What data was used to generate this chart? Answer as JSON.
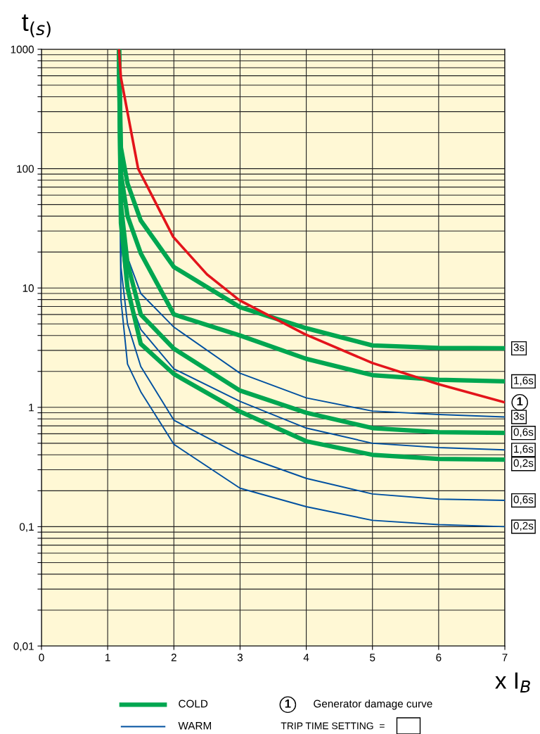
{
  "chart_data": {
    "type": "line",
    "xlabel": "x I$_{B}$",
    "ylabel": "t$_{(s)}$",
    "log": "y",
    "xlim": [
      0,
      7
    ],
    "xticks": [
      0,
      1,
      2,
      3,
      4,
      5,
      6,
      7
    ],
    "ylim": [
      0.01,
      1000
    ],
    "yticks": [
      {
        "value": 0.01,
        "label": "0,01"
      },
      {
        "value": 0.02,
        "label": null
      },
      {
        "value": 0.03,
        "label": null
      },
      {
        "value": 0.04,
        "label": null
      },
      {
        "value": 0.05,
        "label": null
      },
      {
        "value": 0.06,
        "label": null
      },
      {
        "value": 0.07,
        "label": null
      },
      {
        "value": 0.08,
        "label": null
      },
      {
        "value": 0.09,
        "label": null
      },
      {
        "value": 0.1,
        "label": "0,1"
      },
      {
        "value": 0.2,
        "label": null
      },
      {
        "value": 0.3,
        "label": null
      },
      {
        "value": 0.4,
        "label": null
      },
      {
        "value": 0.5,
        "label": null
      },
      {
        "value": 0.6,
        "label": null
      },
      {
        "value": 0.7,
        "label": null
      },
      {
        "value": 0.8,
        "label": null
      },
      {
        "value": 0.9,
        "label": null
      },
      1,
      {
        "value": 2,
        "label": null
      },
      {
        "value": 3,
        "label": null
      },
      {
        "value": 4,
        "label": null
      },
      {
        "value": 5,
        "label": null
      },
      {
        "value": 6,
        "label": null
      },
      {
        "value": 7,
        "label": null
      },
      {
        "value": 8,
        "label": null
      },
      {
        "value": 9,
        "label": null
      },
      10,
      {
        "value": 20,
        "label": null
      },
      {
        "value": 30,
        "label": null
      },
      {
        "value": 40,
        "label": null
      },
      {
        "value": 50,
        "label": null
      },
      {
        "value": 60,
        "label": null
      },
      {
        "value": 70,
        "label": null
      },
      {
        "value": 80,
        "label": null
      },
      {
        "value": 90,
        "label": null
      },
      100,
      {
        "value": 200,
        "label": null
      },
      {
        "value": 300,
        "label": null
      },
      {
        "value": 400,
        "label": null
      },
      {
        "value": 500,
        "label": null
      },
      {
        "value": 600,
        "label": null
      },
      {
        "value": 700,
        "label": null
      },
      {
        "value": 800,
        "label": null
      },
      {
        "value": 900,
        "label": null
      },
      1000
    ],
    "grid": true,
    "marker": "none",
    "line_style": "solid",
    "x": [
      1.17,
      1.2,
      1.3,
      1.5,
      2,
      3,
      4,
      5,
      6,
      7
    ],
    "series": [
      {
        "name": "3s",
        "color": "#00a650",
        "values": [
          1000,
          150,
          75,
          36.7,
          15,
          6.9,
          4.6,
          3.3,
          3.15,
          3.12
        ]
      },
      {
        "name": "1,6s",
        "color": "#00a650",
        "values": [
          1000,
          90,
          40,
          19.5,
          6.0,
          4.0,
          2.55,
          1.86,
          1.7,
          1.65
        ]
      },
      {
        "name": "0,6s",
        "color": "#00a650",
        "values": [
          1000,
          50,
          16,
          6,
          3.1,
          1.38,
          0.9,
          0.67,
          0.62,
          0.61
        ]
      },
      {
        "name": "0,2s",
        "color": "#00a650",
        "values": [
          1000,
          35,
          10,
          3.4,
          1.9,
          0.92,
          0.52,
          0.4,
          0.37,
          0.364
        ]
      },
      {
        "name": "3s",
        "color": "#0050a0",
        "values": [
          1000,
          40,
          18,
          9,
          4.7,
          1.93,
          1.2,
          0.93,
          0.87,
          0.83
        ]
      },
      {
        "name": "1,6s",
        "color": "#0050a0",
        "values": [
          1000,
          25,
          9,
          4.5,
          2.1,
          1.12,
          0.67,
          0.5,
          0.46,
          0.44
        ]
      },
      {
        "name": "0,6s",
        "color": "#0050a0",
        "values": [
          1000,
          15,
          5,
          2.2,
          0.78,
          0.4,
          0.254,
          0.188,
          0.17,
          0.166
        ]
      },
      {
        "name": "0,2s",
        "color": "#0050a0",
        "values": [
          1000,
          8,
          2.3,
          1.35,
          0.49,
          0.21,
          0.147,
          0.113,
          0.104,
          0.1
        ]
      },
      {
        "name": "1",
        "color": "#e3141b",
        "x": [
          1.17,
          1.2,
          1.46,
          1.99,
          2.5,
          2.99,
          3.98,
          5,
          6,
          7
        ],
        "values": [
          1000,
          580,
          100,
          26.8,
          13,
          7.9,
          4.1,
          2.35,
          1.56,
          1.1
        ]
      }
    ],
    "annotations": [
      "COLD",
      "WARM",
      "Generator damage curve",
      "TRIP TIME SETTING  ="
    ]
  }
}
